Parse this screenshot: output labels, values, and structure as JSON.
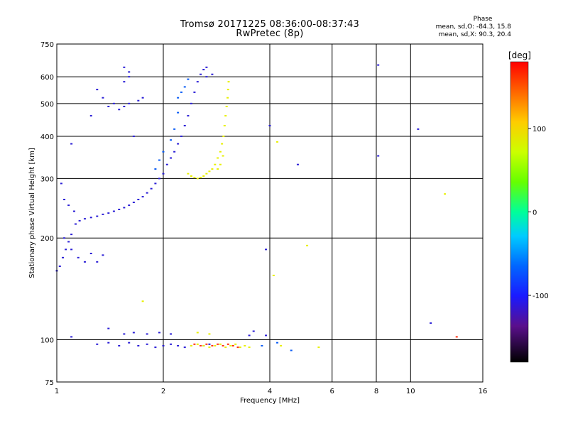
{
  "header": {
    "title_line1": "Tromsø 20171225 08:36:00-08:37:43",
    "title_line2": "RwPretec (8p)",
    "phase_title": "Phase",
    "phase_o": "mean, sd,O: -84.3, 15.8",
    "phase_x": "mean, sd,X:  90.3, 20.4"
  },
  "colorbar": {
    "label": "[deg]",
    "range": [
      -180,
      180
    ],
    "ticks": [
      100,
      0,
      -100
    ],
    "tick_labels": [
      "100",
      "0",
      "-100"
    ]
  },
  "chart_data": {
    "type": "scatter",
    "xlabel": "Frequency [MHz]",
    "ylabel": "Stationary phase Virtual Height [km]",
    "x_scale": "log",
    "y_scale": "log",
    "xlim": [
      1,
      16
    ],
    "ylim": [
      75,
      750
    ],
    "x_ticks": [
      1,
      2,
      4,
      6,
      8,
      10,
      16
    ],
    "x_tick_labels": [
      "1",
      "2",
      "4",
      "6",
      "8",
      "10",
      "16"
    ],
    "y_ticks": [
      75,
      100,
      200,
      300,
      400,
      500,
      600,
      750
    ],
    "y_tick_labels": [
      "75",
      "100",
      "200",
      "300",
      "400",
      "500",
      "600",
      "750"
    ],
    "grid": true,
    "color_quantity": "phase [deg]",
    "series": [
      {
        "points": [
          [
            1.02,
            165
          ],
          [
            1.04,
            175
          ],
          [
            1.06,
            185
          ],
          [
            1.08,
            195
          ],
          [
            1.1,
            205
          ],
          [
            1.13,
            220
          ],
          [
            1.16,
            225
          ],
          [
            1.2,
            228
          ],
          [
            1.25,
            230
          ],
          [
            1.3,
            232
          ],
          [
            1.35,
            235
          ],
          [
            1.4,
            237
          ],
          [
            1.45,
            240
          ],
          [
            1.5,
            243
          ],
          [
            1.55,
            246
          ],
          [
            1.6,
            250
          ],
          [
            1.65,
            255
          ],
          [
            1.7,
            260
          ],
          [
            1.75,
            265
          ],
          [
            1.8,
            272
          ],
          [
            1.85,
            280
          ],
          [
            1.9,
            290
          ],
          [
            1.95,
            300
          ],
          [
            2.0,
            310
          ],
          [
            2.05,
            330
          ],
          [
            2.1,
            345
          ],
          [
            2.15,
            360
          ],
          [
            2.2,
            380
          ],
          [
            2.25,
            400
          ],
          [
            2.3,
            430
          ],
          [
            2.35,
            460
          ],
          [
            2.4,
            500
          ],
          [
            2.45,
            540
          ],
          [
            2.5,
            580
          ],
          [
            2.55,
            610
          ],
          [
            2.6,
            630
          ],
          [
            2.65,
            640
          ],
          [
            1.03,
            290
          ],
          [
            1.05,
            260
          ],
          [
            1.08,
            250
          ],
          [
            1.12,
            240
          ],
          [
            1.05,
            200
          ],
          [
            1.1,
            185
          ],
          [
            1.15,
            175
          ],
          [
            1.2,
            170
          ],
          [
            1.3,
            170
          ],
          [
            1.25,
            180
          ],
          [
            1.35,
            178
          ],
          [
            1.0,
            160
          ],
          [
            1.3,
            550
          ],
          [
            1.35,
            520
          ],
          [
            1.4,
            490
          ],
          [
            1.45,
            500
          ],
          [
            1.5,
            480
          ],
          [
            1.55,
            490
          ],
          [
            1.6,
            500
          ],
          [
            1.25,
            460
          ],
          [
            1.7,
            510
          ],
          [
            1.75,
            520
          ],
          [
            1.55,
            640
          ],
          [
            1.6,
            620
          ],
          [
            1.1,
            380
          ],
          [
            1.65,
            400
          ],
          [
            1.1,
            102
          ],
          [
            1.3,
            97
          ],
          [
            1.4,
            98
          ],
          [
            1.5,
            96
          ],
          [
            1.6,
            98
          ],
          [
            1.7,
            96
          ],
          [
            1.8,
            97
          ],
          [
            1.9,
            95
          ],
          [
            2.0,
            96
          ],
          [
            2.1,
            97
          ],
          [
            2.2,
            96
          ],
          [
            2.3,
            95
          ],
          [
            2.4,
            96
          ],
          [
            2.6,
            96
          ],
          [
            2.7,
            97
          ],
          [
            1.55,
            104
          ],
          [
            1.65,
            105
          ],
          [
            1.8,
            104
          ],
          [
            1.95,
            105
          ],
          [
            2.1,
            104
          ],
          [
            4.0,
            430
          ],
          [
            4.8,
            330
          ],
          [
            8.1,
            650
          ],
          [
            8.1,
            350
          ],
          [
            10.5,
            420
          ],
          [
            3.9,
            185
          ],
          [
            11.4,
            112
          ]
        ],
        "phase_deg": -100
      },
      {
        "points": [
          [
            2.35,
            310
          ],
          [
            2.4,
            305
          ],
          [
            2.45,
            302
          ],
          [
            2.5,
            300
          ],
          [
            2.55,
            302
          ],
          [
            2.6,
            305
          ],
          [
            2.65,
            310
          ],
          [
            2.7,
            315
          ],
          [
            2.75,
            320
          ],
          [
            2.8,
            330
          ],
          [
            2.85,
            345
          ],
          [
            2.9,
            360
          ],
          [
            2.93,
            380
          ],
          [
            2.96,
            400
          ],
          [
            2.98,
            430
          ],
          [
            3.0,
            460
          ],
          [
            3.02,
            490
          ],
          [
            3.04,
            520
          ],
          [
            3.05,
            550
          ],
          [
            3.06,
            580
          ],
          [
            2.9,
            330
          ],
          [
            2.85,
            320
          ],
          [
            2.95,
            350
          ],
          [
            2.4,
            96
          ],
          [
            2.5,
            97
          ],
          [
            2.6,
            96
          ],
          [
            2.7,
            95
          ],
          [
            2.8,
            96
          ],
          [
            2.9,
            97
          ],
          [
            3.0,
            95
          ],
          [
            3.1,
            96
          ],
          [
            3.2,
            97
          ],
          [
            3.3,
            95
          ],
          [
            3.4,
            96
          ],
          [
            3.5,
            95
          ],
          [
            2.5,
            105
          ],
          [
            2.7,
            104
          ],
          [
            4.3,
            96
          ],
          [
            5.1,
            190
          ],
          [
            4.2,
            385
          ],
          [
            4.1,
            155
          ],
          [
            12.5,
            270
          ],
          [
            1.75,
            130
          ],
          [
            5.5,
            95
          ]
        ],
        "phase_deg": 95
      },
      {
        "points": [
          [
            2.45,
            97
          ],
          [
            2.55,
            96
          ],
          [
            2.65,
            97
          ],
          [
            2.75,
            96
          ],
          [
            2.85,
            97
          ],
          [
            2.95,
            96
          ],
          [
            3.05,
            97
          ],
          [
            3.15,
            96
          ],
          [
            3.25,
            95
          ],
          [
            13.5,
            102
          ]
        ],
        "phase_deg": 160
      },
      {
        "points": [
          [
            1.6,
            600
          ],
          [
            1.55,
            580
          ],
          [
            2.65,
            600
          ],
          [
            2.75,
            610
          ],
          [
            1.4,
            108
          ],
          [
            3.5,
            103
          ],
          [
            3.6,
            106
          ],
          [
            3.9,
            103
          ]
        ],
        "phase_deg": -135
      },
      {
        "points": [
          [
            2.2,
            520
          ],
          [
            2.25,
            540
          ],
          [
            2.3,
            560
          ],
          [
            2.35,
            590
          ],
          [
            2.2,
            470
          ],
          [
            2.15,
            420
          ],
          [
            2.1,
            390
          ],
          [
            2.0,
            360
          ],
          [
            1.95,
            340
          ],
          [
            1.9,
            320
          ],
          [
            4.6,
            93
          ],
          [
            4.2,
            98
          ],
          [
            3.8,
            96
          ]
        ],
        "phase_deg": -60
      }
    ]
  }
}
